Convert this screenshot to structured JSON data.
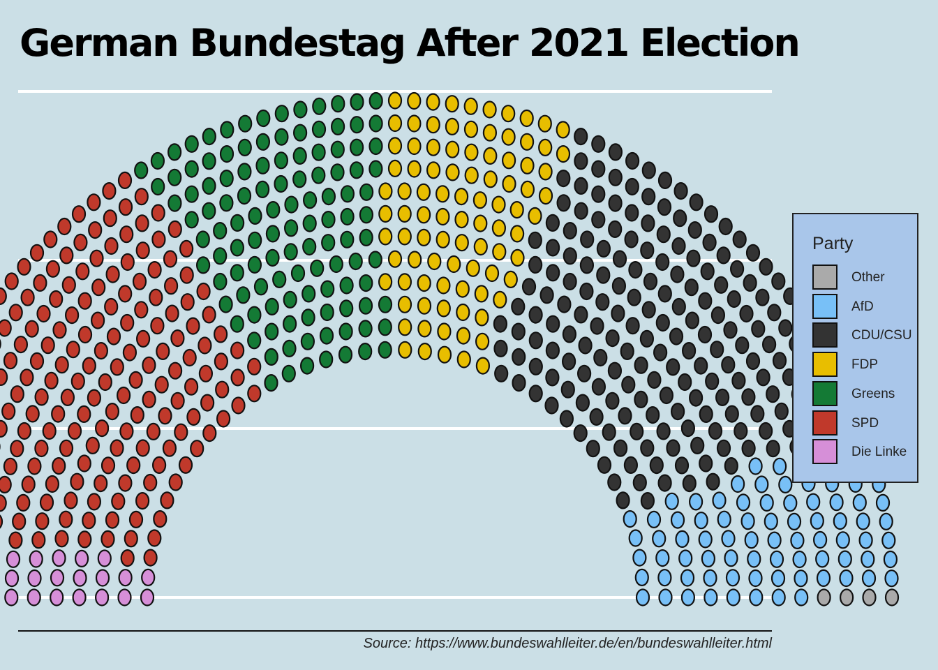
{
  "chart_data": {
    "type": "parliament",
    "title": "German Bundestag After 2021 Election",
    "legend_title": "Party",
    "legend_placement": "right",
    "grid": true,
    "seat_order_left_to_right": [
      "Die Linke",
      "SPD",
      "Greens",
      "FDP",
      "CDU/CSU",
      "AfD",
      "Other"
    ],
    "legend_order": [
      "Other",
      "AfD",
      "CDU/CSU",
      "FDP",
      "Greens",
      "SPD",
      "Die Linke"
    ],
    "parties": [
      {
        "name": "Die Linke",
        "seats": 39,
        "color": "#d68fd8"
      },
      {
        "name": "SPD",
        "seats": 206,
        "color": "#c0392b"
      },
      {
        "name": "Greens",
        "seats": 118,
        "color": "#147a35"
      },
      {
        "name": "FDP",
        "seats": 92,
        "color": "#e8be00"
      },
      {
        "name": "CDU/CSU",
        "seats": 197,
        "color": "#333333"
      },
      {
        "name": "AfD",
        "seats": 83,
        "color": "#78c0f7"
      },
      {
        "name": "Other",
        "seats": 4,
        "color": "#aaaaaa"
      }
    ],
    "source": "Source: https://www.bundeswahlleiter.de/en/bundeswahlleiter.html"
  }
}
